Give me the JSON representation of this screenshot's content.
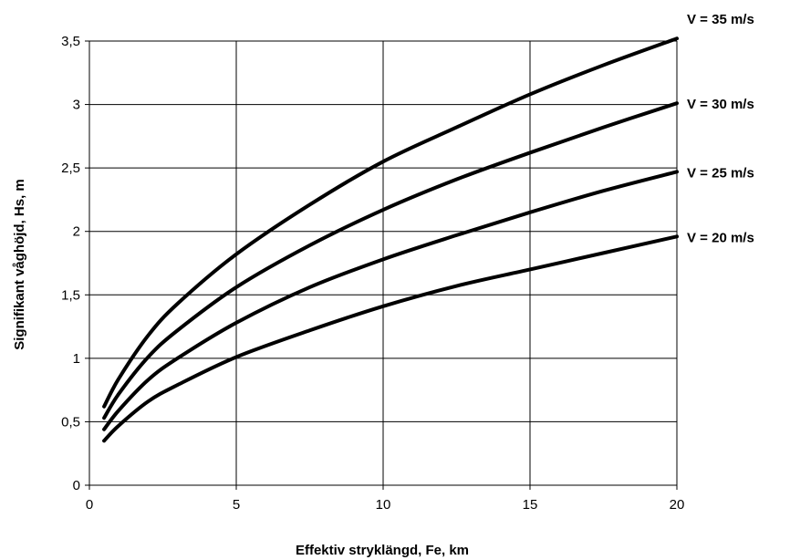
{
  "chart_data": {
    "type": "line",
    "title": "",
    "xlabel": "Effektiv stryklängd, Fe, km",
    "ylabel": "Signifikant våghöjd, Hs, m",
    "xlim": [
      0,
      20
    ],
    "ylim": [
      0,
      3.5
    ],
    "x_ticks": [
      "0",
      "5",
      "10",
      "15",
      "20"
    ],
    "y_ticks": [
      "0",
      "0,5",
      "1",
      "1,5",
      "2",
      "2,5",
      "3",
      "3,5"
    ],
    "grid": true,
    "legend": "direct labels at right end of each line",
    "line_color": "#000000",
    "series": [
      {
        "name": "V = 20 m/s",
        "x": [
          0.5,
          1,
          2,
          3,
          5,
          7.5,
          10,
          12.5,
          15,
          17.5,
          20
        ],
        "y": [
          0.35,
          0.47,
          0.66,
          0.79,
          1.01,
          1.22,
          1.41,
          1.57,
          1.7,
          1.83,
          1.96
        ]
      },
      {
        "name": "V = 25 m/s",
        "x": [
          0.5,
          1,
          2,
          3,
          5,
          7.5,
          10,
          12.5,
          15,
          17.5,
          20
        ],
        "y": [
          0.44,
          0.59,
          0.83,
          1.0,
          1.28,
          1.56,
          1.78,
          1.97,
          2.15,
          2.32,
          2.47
        ]
      },
      {
        "name": "V = 30 m/s",
        "x": [
          0.5,
          1,
          2,
          3,
          5,
          7.5,
          10,
          12.5,
          15,
          17.5,
          20
        ],
        "y": [
          0.53,
          0.72,
          1.01,
          1.22,
          1.56,
          1.89,
          2.17,
          2.41,
          2.62,
          2.82,
          3.01
        ]
      },
      {
        "name": "V = 35 m/s",
        "x": [
          0.5,
          1,
          2,
          3,
          5,
          7.5,
          10,
          12.5,
          15,
          17.5,
          20
        ],
        "y": [
          0.62,
          0.84,
          1.18,
          1.43,
          1.82,
          2.21,
          2.55,
          2.82,
          3.08,
          3.31,
          3.52
        ]
      }
    ]
  }
}
